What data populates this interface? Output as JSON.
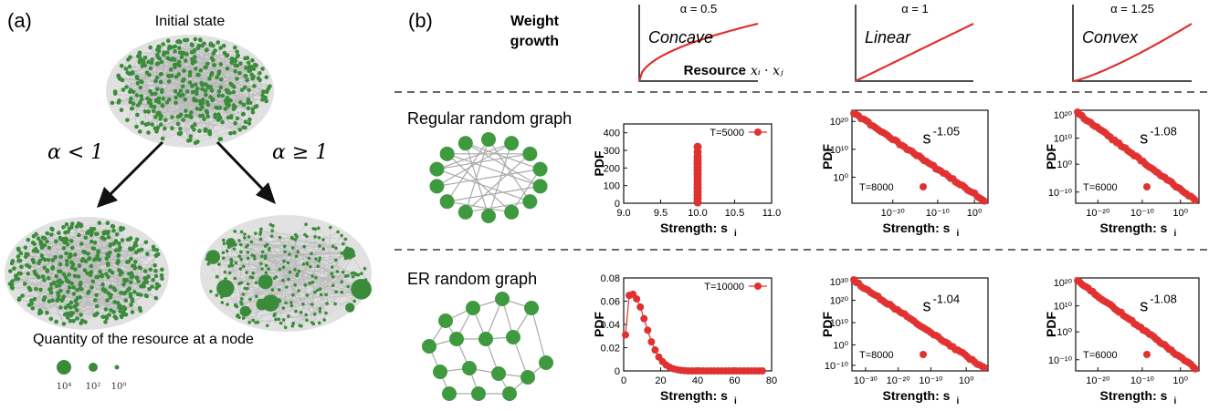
{
  "panel_a": {
    "label": "(a)",
    "initial_state": "Initial state",
    "alpha_lt": "α < 1",
    "alpha_ge": "α ≥ 1",
    "quantity_text": "Quantity of the resource at a node",
    "legend_sizes": [
      "10⁴",
      "10²",
      "10⁰"
    ]
  },
  "panel_b": {
    "label": "(b)",
    "weight_growth_line1": "Weight",
    "weight_growth_line2": "growth",
    "resource_label": "Resource",
    "resource_var": "xᵢ · xⱼ",
    "curves": [
      {
        "alpha": "α = 0.5",
        "name": "Concave",
        "exponent": 0.5
      },
      {
        "alpha": "α = 1",
        "name": "Linear",
        "exponent": 1
      },
      {
        "alpha": "α = 1.25",
        "name": "Convex",
        "exponent": 1.25
      }
    ],
    "row1_label": "Regular random graph",
    "row2_label": "ER random graph",
    "xlabel": "Strength: s",
    "xlabel_sub": "i",
    "ylabel": "PDF"
  },
  "colors": {
    "node": "#3a8c3a",
    "edge": "#b5b5b5",
    "curve": "#e03131",
    "marker": "#e03131"
  },
  "chart_data": [
    {
      "type": "scatter",
      "id": "rr-alpha05",
      "legend": "T=5000",
      "xlim": [
        9.0,
        11.0
      ],
      "ylim": [
        0,
        450
      ],
      "xticks": [
        "9.0",
        "9.5",
        "10.0",
        "10.5",
        "11.0"
      ],
      "yticks": [
        "0",
        "100",
        "200",
        "300",
        "400"
      ],
      "x": [
        10,
        10,
        10,
        10,
        10,
        10,
        10,
        10,
        10,
        10,
        10,
        10,
        10,
        10,
        10,
        10
      ],
      "y": [
        5,
        25,
        45,
        65,
        85,
        105,
        125,
        145,
        165,
        185,
        205,
        225,
        245,
        265,
        290,
        320
      ]
    },
    {
      "type": "scatter",
      "id": "rr-alpha1",
      "scale": "log-log",
      "legend": "T=8000",
      "annotation": "s",
      "annotation_exp": "-1.05",
      "xticks": [
        "10⁻²⁰",
        "10⁻¹⁰",
        "10⁰"
      ],
      "yticks": [
        "10²⁰",
        "10¹⁰",
        "10⁰"
      ]
    },
    {
      "type": "scatter",
      "id": "rr-alpha125",
      "scale": "log-log",
      "legend": "T=6000",
      "annotation": "s",
      "annotation_exp": "-1.08",
      "xticks": [
        "10⁻²⁰",
        "10⁻¹⁰",
        "10⁰"
      ],
      "yticks": [
        "10²⁰",
        "10¹⁰",
        "10⁰",
        "10⁻¹⁰"
      ]
    },
    {
      "type": "line",
      "id": "er-alpha05",
      "legend": "T=10000",
      "xlim": [
        0,
        80
      ],
      "ylim": [
        0,
        0.08
      ],
      "xticks": [
        "0",
        "20",
        "40",
        "60",
        "80"
      ],
      "yticks": [
        "0",
        "0.02",
        "0.04",
        "0.06",
        "0.08"
      ],
      "x": [
        1,
        3,
        5,
        7,
        9,
        11,
        13,
        15,
        17,
        19,
        21,
        23,
        25,
        27,
        29,
        31,
        33,
        35,
        37,
        39,
        41,
        43,
        45,
        47,
        49,
        51,
        53,
        55,
        57,
        59,
        61,
        63,
        65,
        67,
        69,
        71,
        73,
        75
      ],
      "y": [
        0.031,
        0.065,
        0.066,
        0.062,
        0.055,
        0.045,
        0.035,
        0.025,
        0.018,
        0.012,
        0.008,
        0.005,
        0.003,
        0.0018,
        0.001,
        0.0005,
        0.0002,
        0,
        0,
        0,
        0,
        0,
        0,
        0,
        0,
        0,
        0,
        0,
        0,
        0,
        0,
        0,
        0,
        0,
        0,
        0,
        0,
        0
      ]
    },
    {
      "type": "scatter",
      "id": "er-alpha1",
      "scale": "log-log",
      "legend": "T=8000",
      "annotation": "s",
      "annotation_exp": "-1.04",
      "xticks": [
        "10⁻³⁰",
        "10⁻²⁰",
        "10⁻¹⁰",
        "10⁰"
      ],
      "yticks": [
        "10³⁰",
        "10²⁰",
        "10¹⁰",
        "10⁰",
        "10⁻¹⁰"
      ]
    },
    {
      "type": "scatter",
      "id": "er-alpha125",
      "scale": "log-log",
      "legend": "T=6000",
      "annotation": "s",
      "annotation_exp": "-1.08",
      "xticks": [
        "10⁻²⁰",
        "10⁻¹⁰",
        "10⁰"
      ],
      "yticks": [
        "10²⁰",
        "10¹⁰",
        "10⁰",
        "10⁻¹⁰"
      ]
    }
  ]
}
